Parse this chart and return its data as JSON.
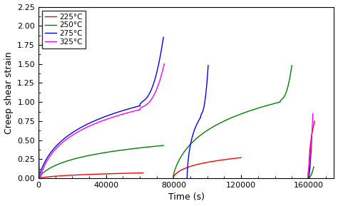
{
  "xlabel": "Time (s)",
  "ylabel": "Creep shear strain",
  "xlim": [
    0,
    175000
  ],
  "ylim": [
    0.0,
    2.25
  ],
  "yticks": [
    0.0,
    0.25,
    0.5,
    0.75,
    1.0,
    1.25,
    1.5,
    1.75,
    2.0,
    2.25
  ],
  "xticks": [
    0,
    40000,
    80000,
    120000,
    160000
  ],
  "legend": [
    "225°C",
    "250°C",
    "275°C",
    "325°C"
  ],
  "colors": {
    "225": "#ff0000",
    "250": "#008000",
    "275": "#0000ff",
    "325": "#ff00ff"
  }
}
